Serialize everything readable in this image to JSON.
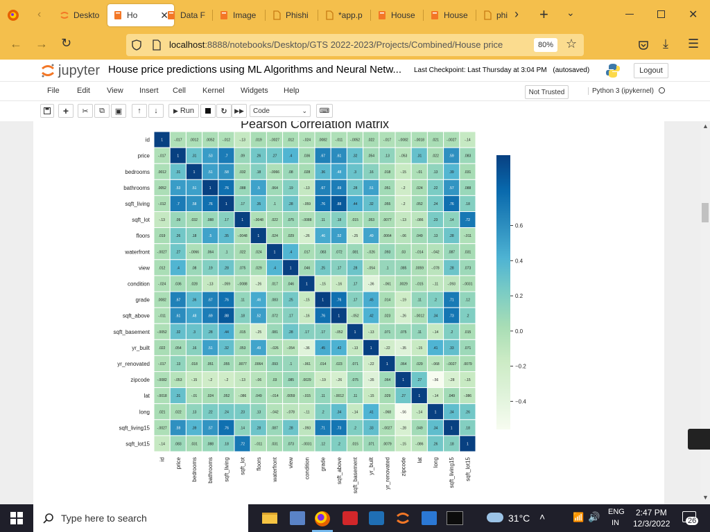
{
  "browser": {
    "tabs": [
      {
        "label": "Deskto",
        "icon": "jupyter-logo-icon",
        "active": false
      },
      {
        "label": "Ho",
        "icon": "notebook-icon",
        "active": true
      },
      {
        "label": "Data F",
        "icon": "notebook-icon",
        "active": false
      },
      {
        "label": "Image",
        "icon": "notebook-icon",
        "active": false
      },
      {
        "label": "Phishi",
        "icon": "file-icon",
        "active": false
      },
      {
        "label": "*app.p",
        "icon": "file-icon",
        "active": false
      },
      {
        "label": "House",
        "icon": "notebook-icon",
        "active": false
      },
      {
        "label": "House",
        "icon": "notebook-icon",
        "active": false
      },
      {
        "label": "phi",
        "icon": "file-icon",
        "active": false
      }
    ],
    "url_host": "localhost",
    "url_rest": ":8888/notebooks/Desktop/GTS 2022-2023/Projects/Combined/House price",
    "zoom": "80%"
  },
  "jupyter": {
    "logo_text": "jupyter",
    "notebook_title": "House price predictions using ML Algorithms and Neural Netw...",
    "checkpoint": "Last Checkpoint: Last Thursday at 3:04 PM",
    "autosave": "(autosaved)",
    "logout": "Logout",
    "menu": [
      "File",
      "Edit",
      "View",
      "Insert",
      "Cell",
      "Kernel",
      "Widgets",
      "Help"
    ],
    "trust": "Not Trusted",
    "kernel": "Python 3 (ipykernel)",
    "run_label": "Run",
    "cell_type": "Code"
  },
  "chart_data": {
    "type": "heatmap",
    "title": "Pearson Correlation Matrix",
    "labels": [
      "id",
      "price",
      "bedrooms",
      "bathrooms",
      "sqft_living",
      "sqft_lot",
      "floors",
      "waterfront",
      "view",
      "condition",
      "grade",
      "sqft_above",
      "sqft_basement",
      "yr_built",
      "yr_renovated",
      "zipcode",
      "lat",
      "long",
      "sqft_living15",
      "sqft_lot15"
    ],
    "matrix": [
      [
        1,
        -0.017,
        0.0012,
        0.0052,
        -0.012,
        -0.13,
        0.019,
        -0.0027,
        0.012,
        -0.024,
        0.0082,
        -0.011,
        -0.0052,
        0.022,
        -0.017,
        -0.0082,
        -0.0018,
        0.021,
        -0.0027,
        -0.14
      ],
      [
        -0.017,
        1,
        0.31,
        0.53,
        0.7,
        0.09,
        0.26,
        0.27,
        0.4,
        0.036,
        0.67,
        0.61,
        0.32,
        0.054,
        0.13,
        -0.053,
        0.31,
        0.022,
        0.59,
        0.083
      ],
      [
        0.0012,
        0.31,
        1,
        0.51,
        0.58,
        0.032,
        0.18,
        -0.0066,
        0.08,
        0.028,
        0.36,
        0.48,
        0.3,
        0.16,
        0.018,
        -0.15,
        -0.01,
        0.13,
        0.39,
        0.031
      ],
      [
        0.0052,
        0.53,
        0.51,
        1,
        0.76,
        0.088,
        0.5,
        0.064,
        0.19,
        -0.13,
        0.67,
        0.69,
        0.28,
        0.51,
        0.051,
        -0.2,
        0.024,
        0.22,
        0.57,
        0.088
      ],
      [
        -0.012,
        0.7,
        0.58,
        0.76,
        1,
        0.17,
        0.35,
        0.1,
        0.28,
        -0.059,
        0.76,
        0.88,
        0.44,
        0.32,
        0.055,
        -0.2,
        0.052,
        0.24,
        0.76,
        0.18
      ],
      [
        -0.13,
        0.09,
        0.032,
        0.088,
        0.17,
        1,
        -0.0048,
        0.022,
        0.075,
        -0.0088,
        0.11,
        0.18,
        0.015,
        0.053,
        0.0077,
        -0.13,
        -0.086,
        0.23,
        0.14,
        0.72
      ],
      [
        0.019,
        0.26,
        0.18,
        0.5,
        0.35,
        -0.0048,
        1,
        0.024,
        0.029,
        -0.26,
        0.46,
        0.52,
        -0.25,
        0.49,
        0.0064,
        -0.06,
        0.049,
        0.13,
        0.28,
        -0.011
      ],
      [
        -0.0027,
        0.27,
        -0.0066,
        0.064,
        0.1,
        0.022,
        0.024,
        1,
        0.4,
        0.017,
        0.083,
        0.072,
        0.081,
        -0.026,
        0.093,
        0.03,
        -0.014,
        -0.042,
        0.087,
        0.031
      ],
      [
        0.012,
        0.4,
        0.08,
        0.19,
        0.28,
        0.075,
        0.029,
        0.4,
        1,
        0.046,
        0.25,
        0.17,
        0.28,
        -0.054,
        0.1,
        0.085,
        0.0059,
        -0.078,
        0.28,
        0.073
      ],
      [
        -0.024,
        0.036,
        0.028,
        -0.13,
        -0.059,
        -0.0088,
        -0.26,
        0.017,
        0.046,
        1,
        -0.15,
        -0.16,
        0.17,
        -0.36,
        -0.061,
        0.0029,
        -0.015,
        -0.11,
        -0.093,
        -0.0031
      ],
      [
        0.0082,
        0.67,
        0.36,
        0.67,
        0.76,
        0.11,
        0.46,
        0.083,
        0.25,
        -0.15,
        1,
        0.76,
        0.17,
        0.45,
        0.014,
        -0.19,
        0.11,
        0.2,
        0.71,
        0.12
      ],
      [
        -0.011,
        0.61,
        0.48,
        0.69,
        0.88,
        0.18,
        0.52,
        0.072,
        0.17,
        -0.16,
        0.76,
        1,
        -0.052,
        0.42,
        0.023,
        -0.26,
        -0.0012,
        0.34,
        0.73,
        0.2
      ],
      [
        -0.0052,
        0.32,
        0.3,
        0.28,
        0.44,
        0.015,
        -0.25,
        0.081,
        0.28,
        0.17,
        0.17,
        -0.052,
        1,
        -0.13,
        0.071,
        0.075,
        0.11,
        -0.14,
        0.2,
        0.015
      ],
      [
        0.022,
        0.054,
        0.16,
        0.51,
        0.32,
        0.053,
        0.49,
        -0.026,
        -0.054,
        -0.36,
        0.45,
        0.42,
        -0.13,
        1,
        -0.22,
        -0.35,
        -0.15,
        0.41,
        0.33,
        0.071
      ],
      [
        -0.017,
        0.13,
        0.018,
        0.051,
        0.055,
        0.0077,
        0.0064,
        0.093,
        0.1,
        -0.061,
        0.014,
        0.023,
        0.071,
        -0.22,
        1,
        0.064,
        0.029,
        -0.068,
        -0.0027,
        0.0079
      ],
      [
        -0.0082,
        -0.053,
        -0.15,
        -0.2,
        -0.2,
        -0.13,
        -0.06,
        0.03,
        0.085,
        0.0029,
        -0.19,
        -0.26,
        0.075,
        -0.35,
        0.064,
        1,
        0.27,
        -0.56,
        -0.28,
        -0.15
      ],
      [
        -0.0018,
        0.31,
        -0.01,
        0.024,
        0.052,
        -0.086,
        0.049,
        -0.014,
        0.0059,
        -0.015,
        0.11,
        -0.0012,
        0.11,
        -0.15,
        0.029,
        0.27,
        1,
        -0.14,
        0.049,
        -0.086
      ],
      [
        0.021,
        0.022,
        0.13,
        0.22,
        0.24,
        0.23,
        0.13,
        -0.042,
        -0.078,
        -0.11,
        0.2,
        0.34,
        -0.14,
        0.41,
        -0.068,
        -0.56,
        -0.14,
        1,
        0.34,
        0.26
      ],
      [
        -0.0027,
        0.59,
        0.39,
        0.57,
        0.76,
        0.14,
        0.28,
        0.087,
        0.28,
        -0.093,
        0.71,
        0.73,
        0.2,
        0.33,
        -0.0027,
        -0.28,
        0.049,
        0.34,
        1,
        0.18
      ],
      [
        -0.14,
        0.083,
        0.031,
        0.088,
        0.18,
        0.72,
        -0.011,
        0.031,
        0.073,
        -0.0031,
        0.12,
        0.2,
        0.015,
        0.071,
        0.0079,
        -0.15,
        -0.086,
        0.26,
        0.18,
        1
      ]
    ],
    "colorbar_ticks": [
      "0.6",
      "0.4",
      "0.2",
      "0.0",
      "−0.2",
      "−0.4"
    ],
    "colorbar_values": [
      0.6,
      0.4,
      0.2,
      0.0,
      -0.2,
      -0.4
    ],
    "range": [
      -0.56,
      1
    ],
    "colormap": "GnBu"
  },
  "taskbar": {
    "search_placeholder": "Type here to search",
    "weather": "31°C",
    "lang_top": "ENG",
    "lang_bottom": "IN",
    "time": "2:47 PM",
    "date": "12/3/2022",
    "notifications": "26"
  }
}
